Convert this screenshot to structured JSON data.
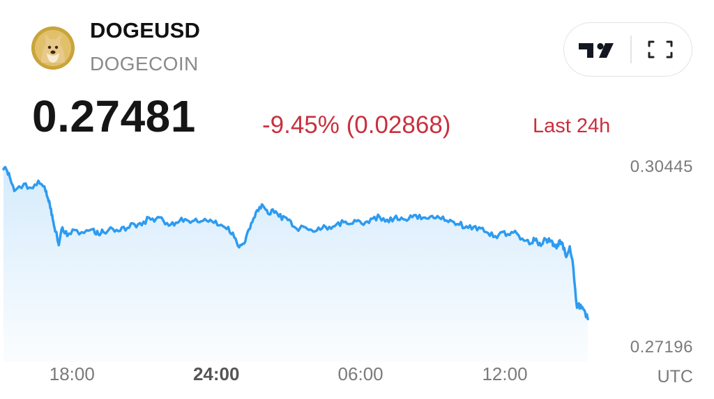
{
  "header": {
    "symbol": "DOGEUSD",
    "name": "DOGECOIN",
    "logo_icon": "dogecoin-logo",
    "toolbar": {
      "chart_button_icon": "tradingview-logo-icon",
      "fullscreen_icon": "fullscreen-icon"
    }
  },
  "quote": {
    "price": "0.27481",
    "change": "-9.45% (0.02868)",
    "period": "Last 24h",
    "change_color": "#c9303d"
  },
  "chart_data": {
    "type": "area",
    "title": "",
    "xlabel": "",
    "ylabel": "",
    "line_color": "#2d9bf0",
    "fill_color": "#2d9bf0",
    "x_ticks": [
      {
        "label": "18:00",
        "hour": 18,
        "bold": false
      },
      {
        "label": "24:00",
        "hour": 24,
        "bold": true
      },
      {
        "label": "06:00",
        "hour": 30,
        "bold": false
      },
      {
        "label": "12:00",
        "hour": 36,
        "bold": false
      }
    ],
    "timezone": "UTC",
    "y_labels": [
      "0.30445",
      "0.27196"
    ],
    "ylim": [
      0.27196,
      0.30445
    ],
    "xlim": [
      15.15,
      39.45
    ],
    "grid": false,
    "legend": "none",
    "x": [
      15.15,
      15.3,
      15.45,
      15.6,
      16.0,
      16.3,
      16.6,
      16.85,
      16.95,
      17.05,
      17.15,
      17.25,
      17.35,
      17.45,
      17.6,
      17.8,
      18.1,
      18.5,
      18.9,
      19.1,
      19.3,
      19.7,
      20.0,
      20.3,
      20.6,
      20.9,
      21.2,
      21.5,
      21.8,
      22.1,
      22.4,
      22.7,
      23.0,
      23.3,
      23.6,
      23.9,
      24.2,
      24.5,
      24.75,
      24.95,
      25.15,
      25.35,
      25.55,
      25.75,
      25.95,
      26.15,
      26.35,
      26.6,
      26.85,
      27.1,
      27.35,
      27.6,
      27.85,
      28.1,
      28.4,
      28.7,
      29.0,
      29.3,
      29.6,
      29.9,
      30.2,
      30.5,
      30.8,
      31.1,
      31.4,
      31.7,
      32.0,
      32.3,
      32.6,
      32.9,
      33.2,
      33.5,
      33.8,
      34.1,
      34.4,
      34.7,
      35.0,
      35.3,
      35.6,
      35.9,
      36.2,
      36.5,
      36.8,
      37.1,
      37.3,
      37.5,
      37.65,
      37.8,
      37.95,
      38.05,
      38.15,
      38.25,
      38.4,
      38.55,
      38.7,
      38.85,
      39.0,
      39.15,
      39.3,
      39.45
    ],
    "y": [
      0.30445,
      0.3041,
      0.3023,
      0.3002,
      0.3016,
      0.3008,
      0.3022,
      0.3011,
      0.2993,
      0.2983,
      0.2955,
      0.2934,
      0.2922,
      0.2896,
      0.2931,
      0.2914,
      0.2926,
      0.292,
      0.2928,
      0.2917,
      0.2922,
      0.2928,
      0.2924,
      0.293,
      0.2937,
      0.2935,
      0.295,
      0.2948,
      0.2944,
      0.2936,
      0.294,
      0.2947,
      0.2943,
      0.2941,
      0.2944,
      0.294,
      0.2936,
      0.2932,
      0.2911,
      0.2892,
      0.2899,
      0.2927,
      0.2949,
      0.2963,
      0.2973,
      0.2958,
      0.2966,
      0.2952,
      0.2951,
      0.2943,
      0.2928,
      0.2933,
      0.2926,
      0.2923,
      0.2929,
      0.2932,
      0.2937,
      0.2941,
      0.2938,
      0.2945,
      0.2941,
      0.2948,
      0.2951,
      0.2946,
      0.2949,
      0.295,
      0.2947,
      0.2955,
      0.295,
      0.2952,
      0.2953,
      0.2944,
      0.2943,
      0.2936,
      0.2933,
      0.2932,
      0.2929,
      0.292,
      0.2914,
      0.2922,
      0.2916,
      0.2919,
      0.2905,
      0.29,
      0.2909,
      0.2895,
      0.291,
      0.2905,
      0.2905,
      0.2896,
      0.289,
      0.2904,
      0.29,
      0.2873,
      0.2894,
      0.2851,
      0.2774,
      0.278,
      0.277,
      0.2752
    ]
  }
}
